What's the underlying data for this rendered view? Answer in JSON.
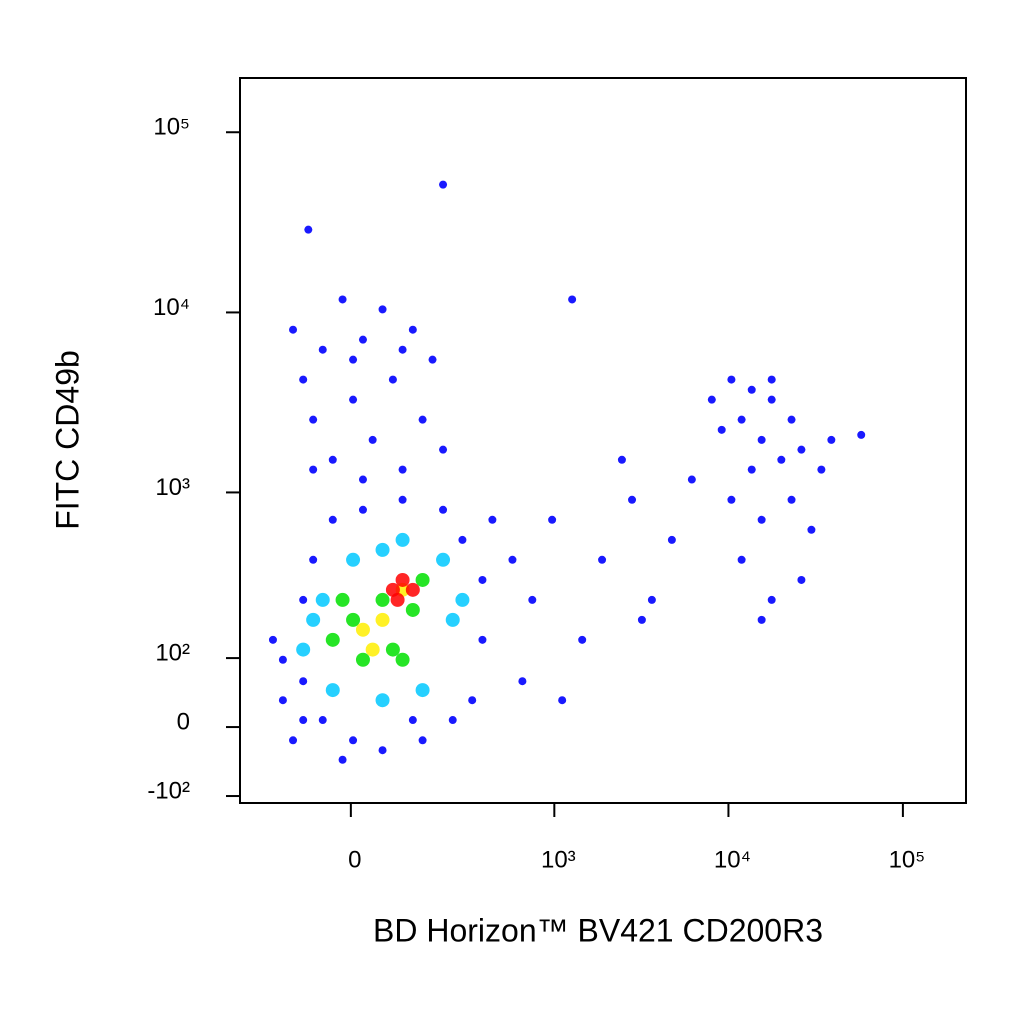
{
  "chart_data": {
    "type": "scatter",
    "x_label": "BD Horizon™ BV421 CD200R3",
    "y_label": "FITC CD49b",
    "xscale": "biexponential",
    "yscale": "biexponential",
    "xlim": [
      -280,
      230000
    ],
    "ylim": [
      -113,
      200000
    ],
    "xticks": [
      0,
      {
        "value": 1000,
        "label": "10³"
      },
      {
        "value": 10000,
        "label": "10⁴"
      },
      {
        "value": 100000,
        "label": "10⁵"
      }
    ],
    "yticks": [
      {
        "value": -100,
        "label": "-10²"
      },
      0,
      {
        "value": 100,
        "label": "10²"
      },
      {
        "value": 1000,
        "label": "10³"
      },
      {
        "value": 10000,
        "label": "10⁴"
      },
      {
        "value": 100000,
        "label": "10⁵"
      }
    ],
    "series": [
      {
        "color": "#0000ff",
        "x": [
          -167,
          -140,
          -115,
          -92,
          -92,
          -71,
          -52,
          -33,
          -15,
          22,
          59,
          101,
          150,
          211,
          283,
          326,
          377,
          377,
          433,
          -140,
          4,
          125,
          245,
          -92,
          -115,
          -92,
          -71,
          -52,
          -33,
          -15,
          4,
          22,
          40,
          59,
          80,
          101,
          125,
          150,
          178,
          211,
          -71,
          22,
          4,
          101,
          570,
          745,
          971,
          1448,
          1884,
          2800,
          3640,
          4740,
          6170,
          652,
          1110,
          2450,
          3190,
          8030,
          9150,
          10400,
          11900,
          13600,
          15500,
          17700,
          20100,
          23000,
          26200,
          13600,
          17700,
          10400,
          15500,
          23000,
          29900,
          11900,
          17700,
          26200,
          15500,
          34100,
          38900,
          57700,
          211,
          -81,
          1267
        ],
        "y": [
          136,
          35,
          -17,
          244,
          62,
          418,
          9,
          703,
          -43,
          800,
          -30,
          910,
          -17,
          800,
          542,
          35,
          320,
          136,
          703,
          97,
          -17,
          9,
          9,
          9,
          8020,
          4240,
          2540,
          6210,
          1520,
          11800,
          3280,
          7060,
          1960,
          10400,
          4240,
          1340,
          8020,
          2540,
          5470,
          1730,
          1340,
          1180,
          5470,
          6210,
          418,
          244,
          703,
          136,
          418,
          910,
          244,
          542,
          1180,
          62,
          35,
          1520,
          184,
          3280,
          2230,
          4240,
          2540,
          3720,
          1960,
          3280,
          1520,
          2540,
          1730,
          1340,
          4240,
          910,
          703,
          910,
          618,
          418,
          244,
          320,
          184,
          1340,
          1960,
          2090,
          51200,
          28800,
          11800
        ]
      },
      {
        "color": "#00c8ff",
        "x": [
          -92,
          -52,
          -33,
          4,
          59,
          101,
          150,
          211,
          245,
          283,
          59,
          -71
        ],
        "y": [
          116,
          244,
          49,
          418,
          35,
          542,
          49,
          418,
          184,
          244,
          476,
          184
        ]
      },
      {
        "color": "#00e000",
        "x": [
          -33,
          4,
          22,
          59,
          80,
          125,
          150,
          101,
          -15
        ],
        "y": [
          136,
          184,
          97,
          244,
          116,
          212,
          320,
          97,
          244
        ]
      },
      {
        "color": "#ffee00",
        "x": [
          22,
          59,
          101,
          40
        ],
        "y": [
          159,
          184,
          280,
          116
        ]
      },
      {
        "color": "#ff0000",
        "x": [
          80,
          101,
          125,
          90
        ],
        "y": [
          280,
          320,
          280,
          244
        ]
      }
    ]
  }
}
